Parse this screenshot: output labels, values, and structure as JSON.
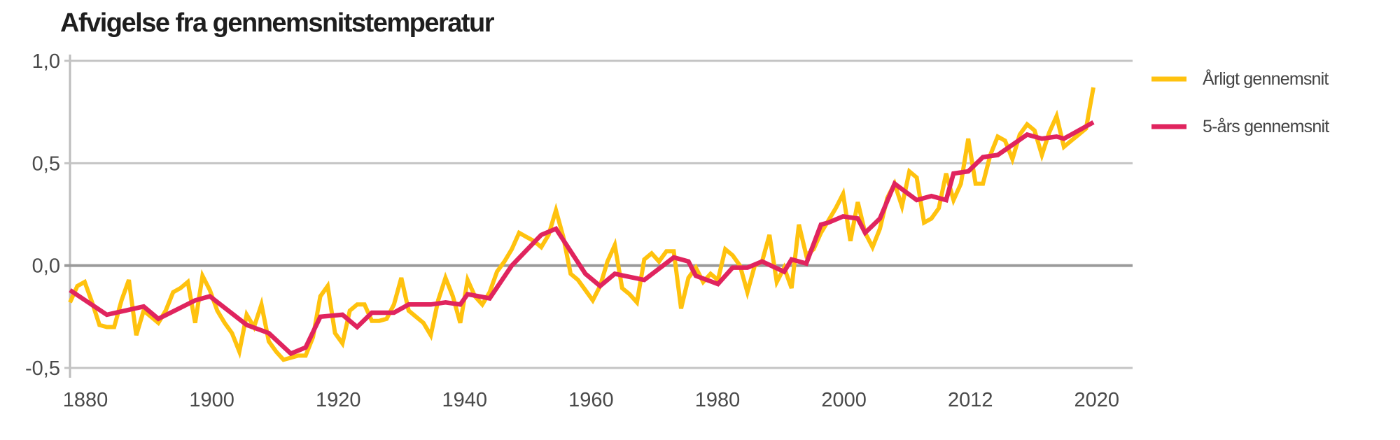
{
  "chart_data": {
    "type": "line",
    "title": "Afvigelse fra gennemsnitstemperatur",
    "xlabel": "",
    "ylabel": "",
    "ylim": [
      -0.5,
      1.0
    ],
    "yticks": [
      "1,0",
      "0,5",
      "0,0",
      "-0,5"
    ],
    "ytick_values": [
      1.0,
      0.5,
      0.0,
      -0.5
    ],
    "xtick_labels": [
      "1880",
      "1900",
      "1920",
      "1940",
      "1960",
      "1980",
      "2000",
      "2012",
      "2020"
    ],
    "grid": "horizontal",
    "legend_position": "right",
    "series": [
      {
        "name": "Årligt gennemsnit",
        "color": "#FFC20E",
        "x": [
          1880,
          1881,
          1882,
          1883,
          1884,
          1885,
          1886,
          1887,
          1888,
          1889,
          1890,
          1891,
          1892,
          1893,
          1894,
          1895,
          1896,
          1897,
          1898,
          1899,
          1900,
          1901,
          1902,
          1903,
          1904,
          1905,
          1906,
          1907,
          1908,
          1909,
          1910,
          1911,
          1912,
          1913,
          1914,
          1915,
          1916,
          1917,
          1918,
          1919,
          1920,
          1921,
          1922,
          1923,
          1924,
          1925,
          1926,
          1927,
          1928,
          1929,
          1930,
          1931,
          1932,
          1933,
          1934,
          1935,
          1936,
          1937,
          1938,
          1939,
          1940,
          1941,
          1942,
          1943,
          1944,
          1945,
          1946,
          1947,
          1948,
          1949,
          1950,
          1951,
          1952,
          1953,
          1954,
          1955,
          1956,
          1957,
          1958,
          1959,
          1960,
          1961,
          1962,
          1963,
          1964,
          1965,
          1966,
          1967,
          1968,
          1969,
          1970,
          1971,
          1972,
          1973,
          1974,
          1975,
          1976,
          1977,
          1978,
          1979,
          1980,
          1981,
          1982,
          1983,
          1984,
          1985,
          1986,
          1987,
          1988,
          1989,
          1990,
          1991,
          1992,
          1993,
          1994,
          1995,
          1996,
          1997,
          1998,
          1999,
          2000,
          2001,
          2002,
          2003,
          2004,
          2005,
          2006,
          2007,
          2008,
          2009,
          2010,
          2011,
          2012,
          2013,
          2014,
          2015,
          2016,
          2017,
          2018,
          2019
        ],
        "values": [
          -0.18,
          -0.1,
          -0.08,
          -0.18,
          -0.29,
          -0.3,
          -0.3,
          -0.17,
          -0.07,
          -0.34,
          -0.22,
          -0.25,
          -0.28,
          -0.22,
          -0.13,
          -0.11,
          -0.08,
          -0.28,
          -0.05,
          -0.12,
          -0.22,
          -0.28,
          -0.33,
          -0.42,
          -0.24,
          -0.3,
          -0.19,
          -0.37,
          -0.42,
          -0.46,
          -0.45,
          -0.44,
          -0.44,
          -0.35,
          -0.15,
          -0.1,
          -0.33,
          -0.38,
          -0.22,
          -0.19,
          -0.19,
          -0.27,
          -0.27,
          -0.26,
          -0.19,
          -0.06,
          -0.22,
          -0.25,
          -0.28,
          -0.34,
          -0.17,
          -0.06,
          -0.15,
          -0.28,
          -0.07,
          -0.15,
          -0.19,
          -0.13,
          -0.03,
          0.02,
          0.08,
          0.16,
          0.14,
          0.12,
          0.09,
          0.15,
          0.27,
          0.14,
          -0.04,
          -0.07,
          -0.12,
          -0.17,
          -0.1,
          0.02,
          0.1,
          -0.11,
          -0.14,
          -0.18,
          0.03,
          0.06,
          0.02,
          0.07,
          0.07,
          -0.21,
          -0.06,
          -0.01,
          -0.08,
          -0.04,
          -0.07,
          0.08,
          0.05,
          0.0,
          -0.13,
          0.0,
          0.02,
          0.15,
          -0.08,
          -0.01,
          -0.11,
          0.2,
          0.05,
          0.08,
          0.16,
          0.22,
          0.28,
          0.35,
          0.12,
          0.31,
          0.16,
          0.09,
          0.18,
          0.33,
          0.4,
          0.29,
          0.46,
          0.43,
          0.21,
          0.23,
          0.28,
          0.45,
          0.32,
          0.4,
          0.62,
          0.4,
          0.4,
          0.54,
          0.63,
          0.61,
          0.52,
          0.64,
          0.69,
          0.66,
          0.54,
          0.65,
          0.73,
          0.58,
          0.61,
          0.64,
          0.67,
          0.87
        ]
      },
      {
        "name": "5-års gennemsnit",
        "color": "#E0245E",
        "x": [
          1880,
          1885,
          1890,
          1892,
          1897,
          1899,
          1904,
          1907,
          1910,
          1912,
          1914,
          1917,
          1919,
          1921,
          1924,
          1926,
          1929,
          1931,
          1933,
          1934,
          1937,
          1940,
          1944,
          1946,
          1950,
          1952,
          1954,
          1958,
          1962,
          1964,
          1965,
          1968,
          1970,
          1972,
          1974,
          1977,
          1978,
          1980,
          1982,
          1983,
          1985,
          1987,
          1988,
          1990,
          1992,
          1995,
          1997,
          1999,
          2000,
          2002,
          2004,
          2006,
          2010,
          2012,
          2014,
          2015,
          2019
        ],
        "values": [
          -0.12,
          -0.24,
          -0.2,
          -0.26,
          -0.17,
          -0.15,
          -0.29,
          -0.33,
          -0.43,
          -0.4,
          -0.25,
          -0.24,
          -0.3,
          -0.23,
          -0.23,
          -0.19,
          -0.19,
          -0.18,
          -0.19,
          -0.14,
          -0.16,
          0.0,
          0.15,
          0.18,
          -0.04,
          -0.1,
          -0.04,
          -0.07,
          0.04,
          0.02,
          -0.05,
          -0.09,
          -0.01,
          -0.01,
          0.02,
          -0.03,
          0.03,
          0.01,
          0.2,
          0.21,
          0.24,
          0.23,
          0.16,
          0.23,
          0.4,
          0.32,
          0.34,
          0.32,
          0.45,
          0.46,
          0.53,
          0.54,
          0.64,
          0.62,
          0.63,
          0.62,
          0.7
        ]
      }
    ]
  }
}
